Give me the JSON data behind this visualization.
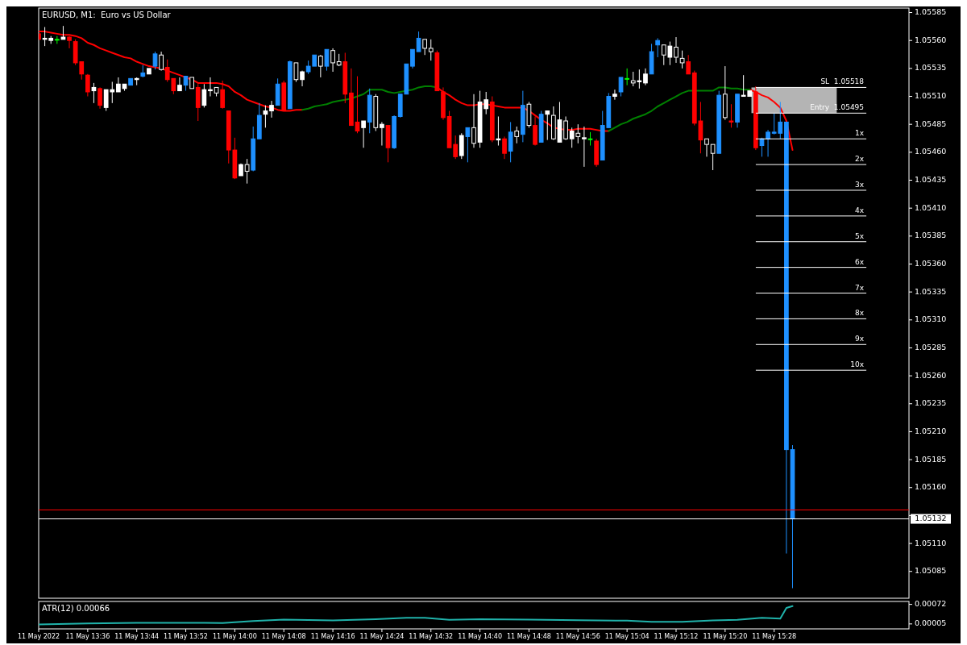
{
  "chart_data": [
    {
      "type": "candlestick",
      "title": "EURUSD, M1:  Euro vs US Dollar",
      "tick_labels": "y",
      "xlim": [
        "2022-05-11T13:28",
        "2022-05-11T15:50"
      ],
      "ylim": [
        1.05061,
        1.05589
      ],
      "yticks": [
        1.05585,
        {
          "value": 1.0556,
          "label": "1.05560"
        },
        1.05535,
        {
          "value": 1.0551,
          "label": "1.05510"
        },
        1.05485,
        {
          "value": 1.0546,
          "label": "1.05460"
        },
        1.05435,
        {
          "value": 1.0541,
          "label": "1.05410"
        },
        1.05385,
        {
          "value": 1.0536,
          "label": "1.05360"
        },
        1.05335,
        {
          "value": 1.0531,
          "label": "1.05310"
        },
        1.05285,
        {
          "value": 1.0526,
          "label": "1.05260"
        },
        1.05235,
        {
          "value": 1.0521,
          "label": "1.05210"
        },
        1.05185,
        {
          "value": 1.0516,
          "label": "1.05160"
        },
        {
          "value": 1.05135,
          "label": null
        },
        {
          "value": 1.0511,
          "label": "1.05110"
        },
        1.05085
      ],
      "x": [
        "2022-05-11T13:28",
        "2022-05-11T13:29",
        "2022-05-11T13:30",
        "2022-05-11T13:31",
        "2022-05-11T13:32",
        "2022-05-11T13:33",
        "2022-05-11T13:34",
        "2022-05-11T13:35",
        "2022-05-11T13:36",
        "2022-05-11T13:37",
        "2022-05-11T13:38",
        "2022-05-11T13:39",
        "2022-05-11T13:40",
        "2022-05-11T13:41",
        "2022-05-11T13:42",
        "2022-05-11T13:43",
        "2022-05-11T13:44",
        "2022-05-11T13:45",
        "2022-05-11T13:46",
        "2022-05-11T13:47",
        "2022-05-11T13:48",
        "2022-05-11T13:49",
        "2022-05-11T13:50",
        "2022-05-11T13:51",
        "2022-05-11T13:52",
        "2022-05-11T13:53",
        "2022-05-11T13:54",
        "2022-05-11T13:55",
        "2022-05-11T13:56",
        "2022-05-11T13:57",
        "2022-05-11T13:58",
        "2022-05-11T13:59",
        "2022-05-11T14:00",
        "2022-05-11T14:01",
        "2022-05-11T14:02",
        "2022-05-11T14:03",
        "2022-05-11T14:04",
        "2022-05-11T14:05",
        "2022-05-11T14:06",
        "2022-05-11T14:07",
        "2022-05-11T14:08",
        "2022-05-11T14:09",
        "2022-05-11T14:10",
        "2022-05-11T14:11",
        "2022-05-11T14:12",
        "2022-05-11T14:13",
        "2022-05-11T14:14",
        "2022-05-11T14:15",
        "2022-05-11T14:16",
        "2022-05-11T14:17",
        "2022-05-11T14:18",
        "2022-05-11T14:19",
        "2022-05-11T14:20",
        "2022-05-11T14:21",
        "2022-05-11T14:22",
        "2022-05-11T14:23",
        "2022-05-11T14:24",
        "2022-05-11T14:25",
        "2022-05-11T14:26",
        "2022-05-11T14:27",
        "2022-05-11T14:28",
        "2022-05-11T14:29",
        "2022-05-11T14:30",
        "2022-05-11T14:31",
        "2022-05-11T14:32",
        "2022-05-11T14:33",
        "2022-05-11T14:34",
        "2022-05-11T14:35",
        "2022-05-11T14:36",
        "2022-05-11T14:37",
        "2022-05-11T14:38",
        "2022-05-11T14:39",
        "2022-05-11T14:40",
        "2022-05-11T14:41",
        "2022-05-11T14:42",
        "2022-05-11T14:43",
        "2022-05-11T14:44",
        "2022-05-11T14:45",
        "2022-05-11T14:46",
        "2022-05-11T14:47",
        "2022-05-11T14:48",
        "2022-05-11T14:49",
        "2022-05-11T14:50",
        "2022-05-11T14:51",
        "2022-05-11T14:52",
        "2022-05-11T14:53",
        "2022-05-11T14:54",
        "2022-05-11T14:55",
        "2022-05-11T14:56",
        "2022-05-11T14:57",
        "2022-05-11T14:58",
        "2022-05-11T14:59",
        "2022-05-11T15:00",
        "2022-05-11T15:01",
        "2022-05-11T15:02",
        "2022-05-11T15:03",
        "2022-05-11T15:04",
        "2022-05-11T15:05",
        "2022-05-11T15:06",
        "2022-05-11T15:07",
        "2022-05-11T15:08",
        "2022-05-11T15:09",
        "2022-05-11T15:10",
        "2022-05-11T15:11",
        "2022-05-11T15:12",
        "2022-05-11T15:13",
        "2022-05-11T15:14",
        "2022-05-11T15:15",
        "2022-05-11T15:16",
        "2022-05-11T15:17",
        "2022-05-11T15:18",
        "2022-05-11T15:19",
        "2022-05-11T15:20",
        "2022-05-11T15:21",
        "2022-05-11T15:22",
        "2022-05-11T15:23",
        "2022-05-11T15:24",
        "2022-05-11T15:25",
        "2022-05-11T15:26",
        "2022-05-11T15:27",
        "2022-05-11T15:28",
        "2022-05-11T15:29",
        "2022-05-11T15:30",
        "2022-05-11T15:31"
      ],
      "ohlc": [
        [
          1.05566,
          1.05566,
          1.05561,
          1.05561
        ],
        [
          1.05562,
          1.05572,
          1.05555,
          1.05561
        ],
        [
          1.05562,
          1.05564,
          1.05557,
          1.0556
        ],
        [
          1.05561,
          1.05564,
          1.05557,
          1.05561
        ],
        [
          1.05563,
          1.05573,
          1.05561,
          1.05561
        ],
        [
          1.05563,
          1.05564,
          1.05553,
          1.0556
        ],
        [
          1.05559,
          1.05561,
          1.05538,
          1.0554
        ],
        [
          1.05541,
          1.05541,
          1.05525,
          1.0553
        ],
        [
          1.05529,
          1.0553,
          1.0551,
          1.05514
        ],
        [
          1.05518,
          1.05522,
          1.05504,
          1.05515
        ],
        [
          1.05517,
          1.05518,
          1.05499,
          1.05502
        ],
        [
          1.05516,
          1.05516,
          1.05497,
          1.055
        ],
        [
          1.05516,
          1.05523,
          1.05504,
          1.05514
        ],
        [
          1.05521,
          1.05527,
          1.05514,
          1.05514
        ],
        [
          1.05521,
          1.05521,
          1.05515,
          1.05517
        ],
        [
          1.0552,
          1.05526,
          1.0552,
          1.05526
        ],
        [
          1.05526,
          1.05527,
          1.0552,
          1.05525
        ],
        [
          1.05528,
          1.05538,
          1.05527,
          1.05531
        ],
        [
          1.05535,
          1.05535,
          1.0553,
          1.0553
        ],
        [
          1.05537,
          1.0555,
          1.05534,
          1.05548
        ],
        [
          1.05534,
          1.0555,
          1.05533,
          1.05547
        ],
        [
          1.05536,
          1.05543,
          1.05523,
          1.05525
        ],
        [
          1.05526,
          1.05526,
          1.05512,
          1.05515
        ],
        [
          1.0552,
          1.05527,
          1.05515,
          1.05515
        ],
        [
          1.0552,
          1.05528,
          1.05515,
          1.05528
        ],
        [
          1.05517,
          1.05527,
          1.05517,
          1.05527
        ],
        [
          1.05518,
          1.05521,
          1.05488,
          1.055
        ],
        [
          1.05516,
          1.05521,
          1.055,
          1.05502
        ],
        [
          1.05516,
          1.05527,
          1.0551,
          1.05515
        ],
        [
          1.05513,
          1.05518,
          1.0551,
          1.05518
        ],
        [
          1.05516,
          1.05524,
          1.05499,
          1.055
        ],
        [
          1.05497,
          1.05497,
          1.0545,
          1.05462
        ],
        [
          1.05462,
          1.05473,
          1.05436,
          1.05437
        ],
        [
          1.05449,
          1.0545,
          1.05439,
          1.05439
        ],
        [
          1.05443,
          1.05454,
          1.05432,
          1.05449
        ],
        [
          1.05444,
          1.05483,
          1.05443,
          1.05472
        ],
        [
          1.05472,
          1.05504,
          1.05472,
          1.05493
        ],
        [
          1.05497,
          1.05502,
          1.05482,
          1.05494
        ],
        [
          1.05502,
          1.05506,
          1.05491,
          1.05497
        ],
        [
          1.05502,
          1.05526,
          1.05502,
          1.05521
        ],
        [
          1.05522,
          1.05524,
          1.05497,
          1.05497
        ],
        [
          1.05499,
          1.05542,
          1.05499,
          1.05541
        ],
        [
          1.05525,
          1.0554,
          1.05523,
          1.0554
        ],
        [
          1.05532,
          1.05533,
          1.05519,
          1.05525
        ],
        [
          1.05532,
          1.05542,
          1.0553,
          1.05537
        ],
        [
          1.05537,
          1.05547,
          1.05537,
          1.05547
        ],
        [
          1.05537,
          1.05547,
          1.05527,
          1.05546
        ],
        [
          1.05537,
          1.05552,
          1.05533,
          1.05552
        ],
        [
          1.0554,
          1.05553,
          1.05532,
          1.05551
        ],
        [
          1.05538,
          1.05548,
          1.05537,
          1.05541
        ],
        [
          1.05541,
          1.05549,
          1.05504,
          1.05512
        ],
        [
          1.05513,
          1.05535,
          1.05484,
          1.05484
        ],
        [
          1.05487,
          1.05528,
          1.05477,
          1.05479
        ],
        [
          1.05488,
          1.05488,
          1.05464,
          1.05482
        ],
        [
          1.05487,
          1.05517,
          1.05477,
          1.05511
        ],
        [
          1.05482,
          1.05512,
          1.05479,
          1.0551
        ],
        [
          1.05485,
          1.05487,
          1.05466,
          1.05482
        ],
        [
          1.05484,
          1.05484,
          1.05451,
          1.05464
        ],
        [
          1.05464,
          1.05493,
          1.05463,
          1.05492
        ],
        [
          1.05492,
          1.05512,
          1.05491,
          1.05512
        ],
        [
          1.05512,
          1.05539,
          1.05512,
          1.05539
        ],
        [
          1.05537,
          1.05552,
          1.05535,
          1.05552
        ],
        [
          1.0555,
          1.05568,
          1.0555,
          1.05562
        ],
        [
          1.05553,
          1.05561,
          1.05547,
          1.05561
        ],
        [
          1.0555,
          1.05561,
          1.05542,
          1.05553
        ],
        [
          1.05549,
          1.05551,
          1.05515,
          1.05515
        ],
        [
          1.05514,
          1.05518,
          1.05489,
          1.05491
        ],
        [
          1.05492,
          1.05497,
          1.05464,
          1.05464
        ],
        [
          1.05467,
          1.05475,
          1.05454,
          1.05456
        ],
        [
          1.05475,
          1.05477,
          1.05454,
          1.05457
        ],
        [
          1.05474,
          1.05482,
          1.05451,
          1.05482
        ],
        [
          1.05468,
          1.05512,
          1.05464,
          1.05482
        ],
        [
          1.05505,
          1.05515,
          1.05464,
          1.05469
        ],
        [
          1.05507,
          1.05514,
          1.05494,
          1.05499
        ],
        [
          1.05505,
          1.0551,
          1.05469,
          1.05471
        ],
        [
          1.05472,
          1.05492,
          1.05466,
          1.05471
        ],
        [
          1.05472,
          1.05474,
          1.05454,
          1.05459
        ],
        [
          1.05461,
          1.05487,
          1.05451,
          1.05478
        ],
        [
          1.05474,
          1.05483,
          1.05468,
          1.05479
        ],
        [
          1.05476,
          1.05515,
          1.05469,
          1.05502
        ],
        [
          1.05484,
          1.05505,
          1.05482,
          1.05503
        ],
        [
          1.05484,
          1.05492,
          1.05466,
          1.05467
        ],
        [
          1.05469,
          1.05497,
          1.05469,
          1.05494
        ],
        [
          1.05497,
          1.05497,
          1.05471,
          1.05494
        ],
        [
          1.05472,
          1.05501,
          1.05471,
          1.05493
        ],
        [
          1.05489,
          1.05505,
          1.05469,
          1.05469
        ],
        [
          1.05472,
          1.05492,
          1.05471,
          1.05488
        ],
        [
          1.05479,
          1.05482,
          1.05464,
          1.05472
        ],
        [
          1.05474,
          1.05485,
          1.05468,
          1.05477
        ],
        [
          1.05473,
          1.05483,
          1.05447,
          1.05472
        ],
        [
          1.05472,
          1.05478,
          1.05466,
          1.05472
        ],
        [
          1.0547,
          1.05472,
          1.05447,
          1.05449
        ],
        [
          1.05453,
          1.05497,
          1.05453,
          1.05484
        ],
        [
          1.05482,
          1.05513,
          1.05482,
          1.0551
        ],
        [
          1.05512,
          1.05516,
          1.05507,
          1.0551
        ],
        [
          1.05514,
          1.05527,
          1.0551,
          1.05527
        ],
        [
          1.05526,
          1.05535,
          1.0552,
          1.05526
        ],
        [
          1.05522,
          1.05532,
          1.05519,
          1.05524
        ],
        [
          1.05524,
          1.05534,
          1.05517,
          1.05523
        ],
        [
          1.0553,
          1.05535,
          1.0552,
          1.05522
        ],
        [
          1.0553,
          1.05557,
          1.0553,
          1.0555
        ],
        [
          1.05556,
          1.05562,
          1.05545,
          1.0556
        ],
        [
          1.05547,
          1.05556,
          1.05538,
          1.05556
        ],
        [
          1.05555,
          1.05559,
          1.05538,
          1.05545
        ],
        [
          1.05545,
          1.05563,
          1.0554,
          1.05554
        ],
        [
          1.0554,
          1.05551,
          1.05535,
          1.05544
        ],
        [
          1.05541,
          1.05547,
          1.0553,
          1.0553
        ],
        [
          1.05531,
          1.05533,
          1.05484,
          1.05486
        ],
        [
          1.05488,
          1.05505,
          1.05459,
          1.05471
        ],
        [
          1.05467,
          1.05472,
          1.05456,
          1.05472
        ],
        [
          1.05459,
          1.05467,
          1.05444,
          1.05467
        ],
        [
          1.05459,
          1.05515,
          1.05459,
          1.05511
        ],
        [
          1.05491,
          1.05537,
          1.05489,
          1.05512
        ],
        [
          1.05488,
          1.05503,
          1.05482,
          1.05487
        ],
        [
          1.05487,
          1.05512,
          1.05482,
          1.05512
        ],
        [
          1.05511,
          1.05529,
          1.0551,
          1.0551
        ],
        [
          1.05515,
          1.05515,
          1.0551,
          1.0551
        ],
        [
          1.05514,
          1.05519,
          1.05462,
          1.05464
        ],
        [
          1.05466,
          1.05473,
          1.05456,
          1.05472
        ],
        [
          1.05472,
          1.0548,
          1.05456,
          1.05478
        ],
        [
          1.05477,
          1.05495,
          1.05476,
          1.05478
        ],
        [
          1.05477,
          1.05505,
          1.05472,
          1.05487
        ],
        [
          1.05487,
          1.05487,
          1.05101,
          1.05194
        ],
        [
          1.05194,
          1.05198,
          1.0507,
          1.05132
        ]
      ],
      "colors": [
        "#ff0000",
        "#ffffff",
        "#ffffff",
        "#00ff00",
        "#ffffff",
        "#ff0000",
        "#ff0000",
        "#ff0000",
        "#ff0000",
        "#ffffff",
        "#ff0000",
        "#ffffff",
        "#ffffff",
        "#ffffff",
        "#ffffff",
        "#1e90ff",
        "#ffffff",
        "#1e90ff",
        "#ffffff",
        "#1e90ff",
        "#ffffff",
        "#ff0000",
        "#ff0000",
        "#ffffff",
        "#1e90ff",
        "#ffffff",
        "#ff0000",
        "#ffffff",
        "#ffffff",
        "#ffffff",
        "#ff0000",
        "#ff0000",
        "#ff0000",
        "#ffffff",
        "#ffffff",
        "#1e90ff",
        "#1e90ff",
        "#ffffff",
        "#ffffff",
        "#1e90ff",
        "#ff0000",
        "#1e90ff",
        "#ffffff",
        "#ffffff",
        "#1e90ff",
        "#1e90ff",
        "#ffffff",
        "#1e90ff",
        "#ffffff",
        "#ffffff",
        "#ff0000",
        "#ff0000",
        "#ff0000",
        "#ffffff",
        "#1e90ff",
        "#ffffff",
        "#ffffff",
        "#ff0000",
        "#1e90ff",
        "#1e90ff",
        "#1e90ff",
        "#1e90ff",
        "#1e90ff",
        "#ffffff",
        "#ffffff",
        "#ff0000",
        "#ff0000",
        "#ff0000",
        "#ff0000",
        "#ffffff",
        "#1e90ff",
        "#ffffff",
        "#ffffff",
        "#ffffff",
        "#ff0000",
        "#ffffff",
        "#ff0000",
        "#1e90ff",
        "#ffffff",
        "#1e90ff",
        "#ffffff",
        "#ff0000",
        "#1e90ff",
        "#ffffff",
        "#ffffff",
        "#ffffff",
        "#ffffff",
        "#ffffff",
        "#ffffff",
        "#ffffff",
        "#00ff00",
        "#ff0000",
        "#1e90ff",
        "#1e90ff",
        "#ffffff",
        "#1e90ff",
        "#00ff00",
        "#ffffff",
        "#ffffff",
        "#ffffff",
        "#1e90ff",
        "#1e90ff",
        "#ffffff",
        "#ffffff",
        "#ffffff",
        "#ffffff",
        "#ff0000",
        "#ff0000",
        "#ff0000",
        "#ffffff",
        "#ffffff",
        "#1e90ff",
        "#ffffff",
        "#ff0000",
        "#1e90ff",
        "#ffffff",
        "#ffffff",
        "#ff0000",
        "#1e90ff",
        "#1e90ff",
        "#1e90ff",
        "#1e90ff",
        "#1e90ff",
        "#1e90ff"
      ],
      "series": [
        {
          "type": "line",
          "color": "#ff0000",
          "values": [
            1.05568,
            1.05568,
            1.05567,
            1.05566,
            1.05565,
            1.05565,
            1.05564,
            1.05562,
            1.05558,
            1.05556,
            1.05553,
            1.05551,
            1.05549,
            1.05547,
            1.05545,
            1.05544,
            1.05541,
            1.05539,
            1.05537,
            1.05536,
            1.05535,
            1.05533,
            1.05531,
            1.05529,
            1.05527,
            1.05525,
            1.05522,
            1.05522,
            1.05522,
            1.05522,
            1.05521,
            1.05519,
            1.05514,
            1.05511,
            1.05507,
            1.05505,
            1.05503,
            1.05501,
            1.055,
            1.05498,
            1.05497,
            1.05497,
            1.05498,
            1.05498,
            null,
            null,
            null,
            null,
            null,
            null,
            null,
            null,
            null,
            null,
            null,
            null,
            null,
            null,
            null,
            null,
            null,
            null,
            null,
            null,
            null,
            1.05518,
            1.05514,
            1.05511,
            1.05507,
            1.05504,
            1.05502,
            1.05502,
            1.05503,
            1.05503,
            1.05502,
            1.05501,
            1.055,
            1.055,
            1.055,
            1.055,
            1.05497,
            1.05493,
            1.05489,
            1.05486,
            1.05482,
            1.05481,
            1.0548,
            1.0548,
            1.05481,
            1.05481,
            1.05481,
            1.0548,
            1.05479,
            1.05479,
            null,
            null,
            null,
            null,
            null,
            null,
            null,
            null,
            null,
            null,
            null,
            null,
            null,
            null,
            null,
            null,
            null,
            null,
            null,
            null,
            null,
            null,
            1.05516,
            1.05514,
            1.05511,
            1.05509,
            1.05505,
            1.055,
            1.05488,
            1.05462
          ]
        },
        {
          "type": "line",
          "color": "#008000",
          "values": [
            null,
            null,
            null,
            null,
            null,
            null,
            null,
            null,
            null,
            null,
            null,
            null,
            null,
            null,
            null,
            null,
            null,
            null,
            null,
            null,
            null,
            null,
            null,
            null,
            null,
            null,
            null,
            null,
            null,
            null,
            null,
            null,
            null,
            null,
            null,
            null,
            null,
            null,
            null,
            null,
            null,
            null,
            null,
            1.05498,
            1.05499,
            1.05501,
            1.05502,
            1.05503,
            1.05505,
            1.05506,
            1.05507,
            1.05508,
            1.0551,
            1.05512,
            1.05516,
            1.05516,
            1.05516,
            1.05514,
            1.05513,
            1.05514,
            1.05515,
            1.05516,
            1.05518,
            1.05519,
            1.05519,
            1.05518,
            null,
            null,
            null,
            null,
            null,
            null,
            null,
            null,
            null,
            null,
            null,
            null,
            null,
            null,
            null,
            null,
            null,
            null,
            null,
            null,
            null,
            null,
            null,
            null,
            null,
            null,
            null,
            1.05479,
            1.05482,
            1.05485,
            1.05487,
            1.0549,
            1.05492,
            1.05494,
            1.05497,
            1.05501,
            1.05504,
            1.05507,
            1.0551,
            1.05513,
            1.05515,
            1.05515,
            1.05515,
            1.05515,
            1.05515,
            1.05518,
            1.05518,
            1.05517,
            1.05517,
            1.05516,
            1.05516,
            null,
            null,
            null,
            null,
            null,
            null,
            null
          ]
        }
      ],
      "bands": [
        {
          "axis": "y",
          "from": 1.05495,
          "to": 1.05518,
          "color": "#b4b4b4"
        }
      ],
      "ref_lines": [
        {
          "axis": "y",
          "value": 1.05518,
          "label": "SL  1.05518"
        },
        {
          "axis": "y",
          "value": 1.05495,
          "label": "Entry  1.05495"
        },
        {
          "axis": "y",
          "value": 1.05472,
          "label": "1x"
        },
        {
          "axis": "y",
          "value": 1.05449,
          "label": "2x"
        },
        {
          "axis": "y",
          "value": 1.05426,
          "label": "3x"
        },
        {
          "axis": "y",
          "value": 1.05403,
          "label": "4x"
        },
        {
          "axis": "y",
          "value": 1.0538,
          "label": "5x"
        },
        {
          "axis": "y",
          "value": 1.05357,
          "label": "6x"
        },
        {
          "axis": "y",
          "value": 1.05334,
          "label": "7x"
        },
        {
          "axis": "y",
          "value": 1.05311,
          "label": "8x"
        },
        {
          "axis": "y",
          "value": 1.05288,
          "label": "9x"
        },
        {
          "axis": "y",
          "value": 1.05265,
          "label": "10x"
        },
        {
          "axis": "y",
          "value": 1.0514,
          "color": "#ff0000"
        },
        {
          "axis": "y",
          "value": 1.05132,
          "label": "1.05132",
          "color": "#ffffff"
        }
      ]
    },
    {
      "type": "line",
      "title": "ATR(12) 0.00066",
      "xlim": [
        "2022-05-11T13:28",
        "2022-05-11T15:50"
      ],
      "xticks": [
        {
          "value": "2022-05-11T13:28",
          "label": "11 May 2022"
        },
        {
          "value": "2022-05-11T13:36",
          "label": "11 May 13:36"
        },
        {
          "value": "2022-05-11T13:44",
          "label": "11 May 13:44"
        },
        {
          "value": "2022-05-11T13:52",
          "label": "11 May 13:52"
        },
        {
          "value": "2022-05-11T14:00",
          "label": "11 May 14:00"
        },
        {
          "value": "2022-05-11T14:08",
          "label": "11 May 14:08"
        },
        {
          "value": "2022-05-11T14:16",
          "label": "11 May 14:16"
        },
        {
          "value": "2022-05-11T14:24",
          "label": "11 May 14:24"
        },
        {
          "value": "2022-05-11T14:32",
          "label": "11 May 14:32"
        },
        {
          "value": "2022-05-11T14:40",
          "label": "11 May 14:40"
        },
        {
          "value": "2022-05-11T14:48",
          "label": "11 May 14:48"
        },
        {
          "value": "2022-05-11T14:56",
          "label": "11 May 14:56"
        },
        {
          "value": "2022-05-11T15:04",
          "label": "11 May 15:04"
        },
        {
          "value": "2022-05-11T15:12",
          "label": "11 May 15:12"
        },
        {
          "value": "2022-05-11T15:20",
          "label": "11 May 15:20"
        },
        {
          "value": "2022-05-11T15:28",
          "label": "11 May 15:28"
        }
      ],
      "ylim": [
        -0.00012,
        0.00082
      ],
      "yticks": [
        0.00072,
        {
          "value": 5e-05,
          "label": "0.00005"
        }
      ],
      "x": [
        "2022-05-11T13:28",
        "2022-05-11T13:36",
        "2022-05-11T13:44",
        "2022-05-11T13:52",
        "2022-05-11T13:58",
        "2022-05-11T14:03",
        "2022-05-11T14:08",
        "2022-05-11T14:16",
        "2022-05-11T14:23",
        "2022-05-11T14:28",
        "2022-05-11T14:31",
        "2022-05-11T14:35",
        "2022-05-11T14:40",
        "2022-05-11T14:48",
        "2022-05-11T14:56",
        "2022-05-11T15:04",
        "2022-05-11T15:08",
        "2022-05-11T15:13",
        "2022-05-11T15:18",
        "2022-05-11T15:22",
        "2022-05-11T15:26",
        "2022-05-11T15:29",
        "2022-05-11T15:30",
        "2022-05-11T15:31"
      ],
      "series": [
        {
          "color": "#20b2aa",
          "values": [
            3e-05,
            7e-05,
            9e-05,
            9e-05,
            8e-05,
            0.00015,
            0.0002,
            0.00017,
            0.00021,
            0.00026,
            0.00026,
            0.00019,
            0.00021,
            0.0002,
            0.00018,
            0.00016,
            0.00012,
            0.00012,
            0.00017,
            0.00019,
            0.00026,
            0.00023,
            0.0006,
            0.00066
          ]
        }
      ]
    }
  ]
}
